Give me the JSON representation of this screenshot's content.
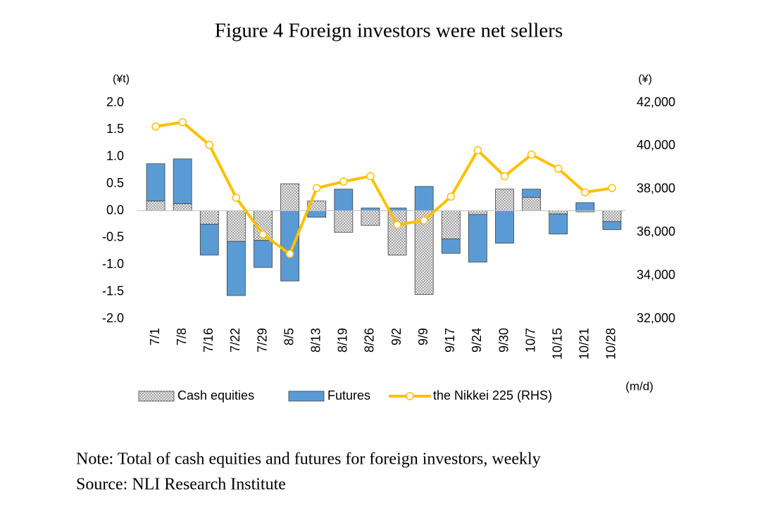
{
  "chart_data": {
    "type": "bar",
    "title": "Figure 4 Foreign investors were net sellers",
    "y_unit": "(¥t)",
    "y2_unit": "(¥)",
    "x_unit": "(m/d)",
    "categories": [
      "7/1",
      "7/8",
      "7/16",
      "7/22",
      "7/29",
      "8/5",
      "8/13",
      "8/19",
      "8/26",
      "9/2",
      "9/9",
      "9/17",
      "9/24",
      "9/30",
      "10/7",
      "10/15",
      "10/21",
      "10/28"
    ],
    "stacked": true,
    "series": [
      {
        "name": "Cash equities",
        "type": "bar",
        "color": "#a6a6a6",
        "pattern": "dots",
        "values": [
          0.18,
          0.13,
          -0.25,
          -0.57,
          -0.55,
          0.5,
          0.18,
          -0.4,
          -0.27,
          -0.82,
          -1.55,
          -0.52,
          -0.07,
          0.4,
          0.25,
          -0.06,
          -0.02,
          -0.2
        ]
      },
      {
        "name": "Futures",
        "type": "bar",
        "color": "#5b9bd5",
        "values": [
          0.69,
          0.83,
          -0.57,
          -1.0,
          -0.5,
          -1.3,
          -0.12,
          0.4,
          0.05,
          0.05,
          0.45,
          -0.27,
          -0.88,
          -0.6,
          0.15,
          -0.37,
          0.15,
          -0.15
        ]
      },
      {
        "name": "the Nikkei 225 (RHS)",
        "type": "line",
        "axis": "y2",
        "color": "#ffc000",
        "values": [
          40900,
          41100,
          40050,
          37600,
          35900,
          35000,
          38050,
          38350,
          38600,
          36350,
          36550,
          37650,
          39800,
          38600,
          39600,
          38950,
          37850,
          38050
        ]
      }
    ],
    "ylim": [
      -2,
      2
    ],
    "yticks": [
      {
        "value": 2,
        "label": "2.0"
      },
      1.5,
      {
        "value": 1,
        "label": "1.0"
      },
      0.5,
      {
        "value": 0,
        "label": "0.0"
      },
      -0.5,
      {
        "value": -1,
        "label": "-1.0"
      },
      -1.5,
      {
        "value": -2,
        "label": "-2.0"
      }
    ],
    "y2lim": [
      32000,
      42000
    ],
    "y2ticks": [
      {
        "value": 42000,
        "label": "42,000"
      },
      {
        "value": 40000,
        "label": "40,000"
      },
      {
        "value": 38000,
        "label": "38,000"
      },
      {
        "value": 36000,
        "label": "36,000"
      },
      {
        "value": 34000,
        "label": "34,000"
      },
      {
        "value": 32000,
        "label": "32,000"
      }
    ],
    "legend": "bottom",
    "note": "Note: Total of cash equities and futures for foreign investors, weekly",
    "source": "Source: NLI Research Institute"
  }
}
